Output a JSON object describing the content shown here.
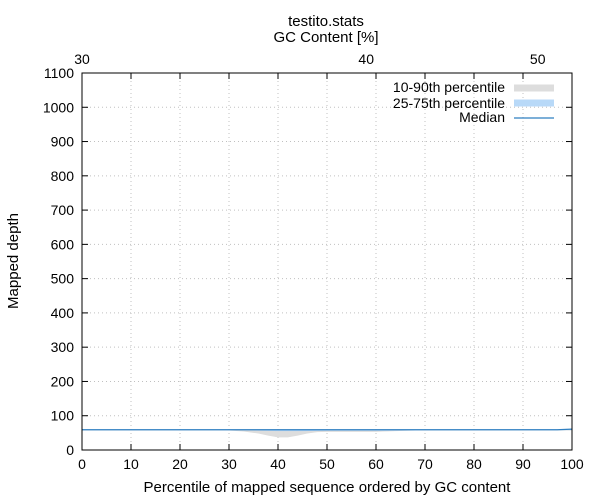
{
  "chart_data": {
    "type": "area",
    "title": "testito.stats",
    "subtitle": "GC Content [%]",
    "xlabel": "Percentile of mapped sequence ordered by GC content",
    "ylabel": "Mapped depth",
    "xlim": [
      0,
      100
    ],
    "ylim": [
      0,
      1100
    ],
    "x_ticks": [
      0,
      10,
      20,
      30,
      40,
      50,
      60,
      70,
      80,
      90,
      100
    ],
    "y_ticks": [
      0,
      100,
      200,
      300,
      400,
      500,
      600,
      700,
      800,
      900,
      1000,
      1100
    ],
    "x2_label": "GC Content [%]",
    "x2_ticks": [
      {
        "value": 30,
        "at_percentile": 0
      },
      {
        "value": 40,
        "at_percentile": 58
      },
      {
        "value": 50,
        "at_percentile": 93
      }
    ],
    "grid": true,
    "legend_position": "top-right",
    "series": [
      {
        "name": "10-90th percentile",
        "color": "#dddddd",
        "x": [
          0,
          30,
          33,
          36,
          38,
          40,
          42,
          44,
          46,
          48,
          50,
          55,
          60,
          64,
          68,
          100
        ],
        "lower": [
          57,
          57,
          54,
          48,
          42,
          37,
          37,
          42,
          48,
          52,
          53,
          53,
          53,
          55,
          57,
          57
        ],
        "upper": [
          60,
          60,
          60,
          60,
          60,
          60,
          60,
          60,
          60,
          60,
          60,
          60,
          60,
          60,
          60,
          60
        ]
      },
      {
        "name": "25-75th percentile",
        "color": "#b8d9f8",
        "x": [
          0,
          30,
          35,
          40,
          45,
          50,
          60,
          66,
          70,
          100
        ],
        "lower": [
          58,
          58,
          57,
          55,
          55,
          56,
          56,
          57,
          58,
          58
        ],
        "upper": [
          60,
          60,
          60,
          60,
          60,
          60,
          60,
          60,
          60,
          60
        ]
      },
      {
        "name": "Median",
        "color": "#2f7fc1",
        "x": [
          0,
          50,
          97,
          100
        ],
        "values": [
          59,
          59,
          59,
          61
        ]
      }
    ]
  }
}
